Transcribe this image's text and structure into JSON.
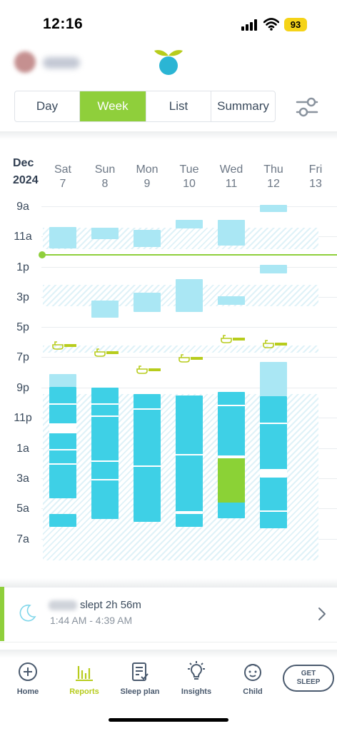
{
  "status_bar": {
    "time": "12:16",
    "battery": "93"
  },
  "tabs": [
    {
      "label": "Day",
      "active": false
    },
    {
      "label": "Week",
      "active": true
    },
    {
      "label": "List",
      "active": false
    },
    {
      "label": "Summary",
      "active": false
    }
  ],
  "calendar": {
    "month": "Dec",
    "year": "2024",
    "days": [
      {
        "name": "Sat",
        "num": "7"
      },
      {
        "name": "Sun",
        "num": "8"
      },
      {
        "name": "Mon",
        "num": "9"
      },
      {
        "name": "Tue",
        "num": "10"
      },
      {
        "name": "Wed",
        "num": "11"
      },
      {
        "name": "Thu",
        "num": "12"
      },
      {
        "name": "Fri",
        "num": "13"
      }
    ],
    "hour_labels": [
      "9a",
      "11a",
      "1p",
      "3p",
      "5p",
      "7p",
      "9p",
      "11p",
      "1a",
      "3a",
      "5a",
      "7a"
    ]
  },
  "selected_sleep": {
    "title": "slept 2h 56m",
    "time_range": "1:44 AM - 4:39 AM"
  },
  "bottom_nav": [
    {
      "label": "Home",
      "icon": "plus-circle-icon",
      "active": false
    },
    {
      "label": "Reports",
      "icon": "bar-chart-icon",
      "active": true
    },
    {
      "label": "Sleep plan",
      "icon": "checklist-icon",
      "active": false
    },
    {
      "label": "Insights",
      "icon": "lightbulb-icon",
      "active": false
    },
    {
      "label": "Child",
      "icon": "baby-face-icon",
      "active": false
    }
  ],
  "get_sleep": {
    "line1": "GET",
    "line2": "SLEEP"
  },
  "colors": {
    "accent_green": "#8fcf3b",
    "nap_light_blue": "#aae7f4",
    "night_blue": "#3ed0e6",
    "reports_active": "#b7cc1c"
  }
}
